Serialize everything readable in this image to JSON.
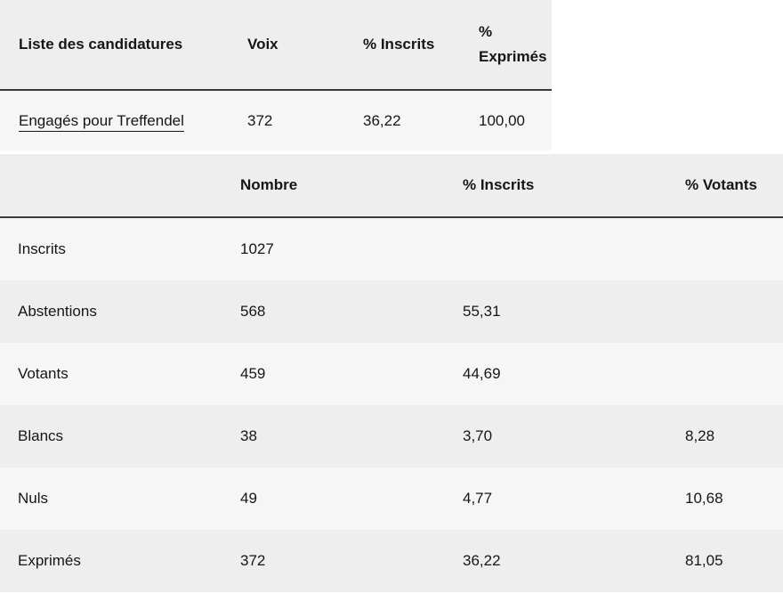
{
  "candidatures": {
    "headers": {
      "list": "Liste des candidatures",
      "voix": "Voix",
      "pct_inscrits": "% Inscrits",
      "pct_exprimes_line1": "%",
      "pct_exprimes_line2": "Exprimés"
    },
    "rows": [
      {
        "name": "Engagés pour Treffendel",
        "voix": "372",
        "pct_inscrits": "36,22",
        "pct_exprimes": "100,00"
      }
    ]
  },
  "participation": {
    "headers": {
      "label": "",
      "nombre": "Nombre",
      "pct_inscrits": "% Inscrits",
      "pct_votants": "% Votants"
    },
    "rows": [
      {
        "label": "Inscrits",
        "nombre": "1027",
        "pct_inscrits": "",
        "pct_votants": ""
      },
      {
        "label": "Abstentions",
        "nombre": "568",
        "pct_inscrits": "55,31",
        "pct_votants": ""
      },
      {
        "label": "Votants",
        "nombre": "459",
        "pct_inscrits": "44,69",
        "pct_votants": ""
      },
      {
        "label": "Blancs",
        "nombre": "38",
        "pct_inscrits": "3,70",
        "pct_votants": "8,28"
      },
      {
        "label": "Nuls",
        "nombre": "49",
        "pct_inscrits": "4,77",
        "pct_votants": "10,68"
      },
      {
        "label": "Exprimés",
        "nombre": "372",
        "pct_inscrits": "36,22",
        "pct_votants": "81,05"
      }
    ]
  }
}
